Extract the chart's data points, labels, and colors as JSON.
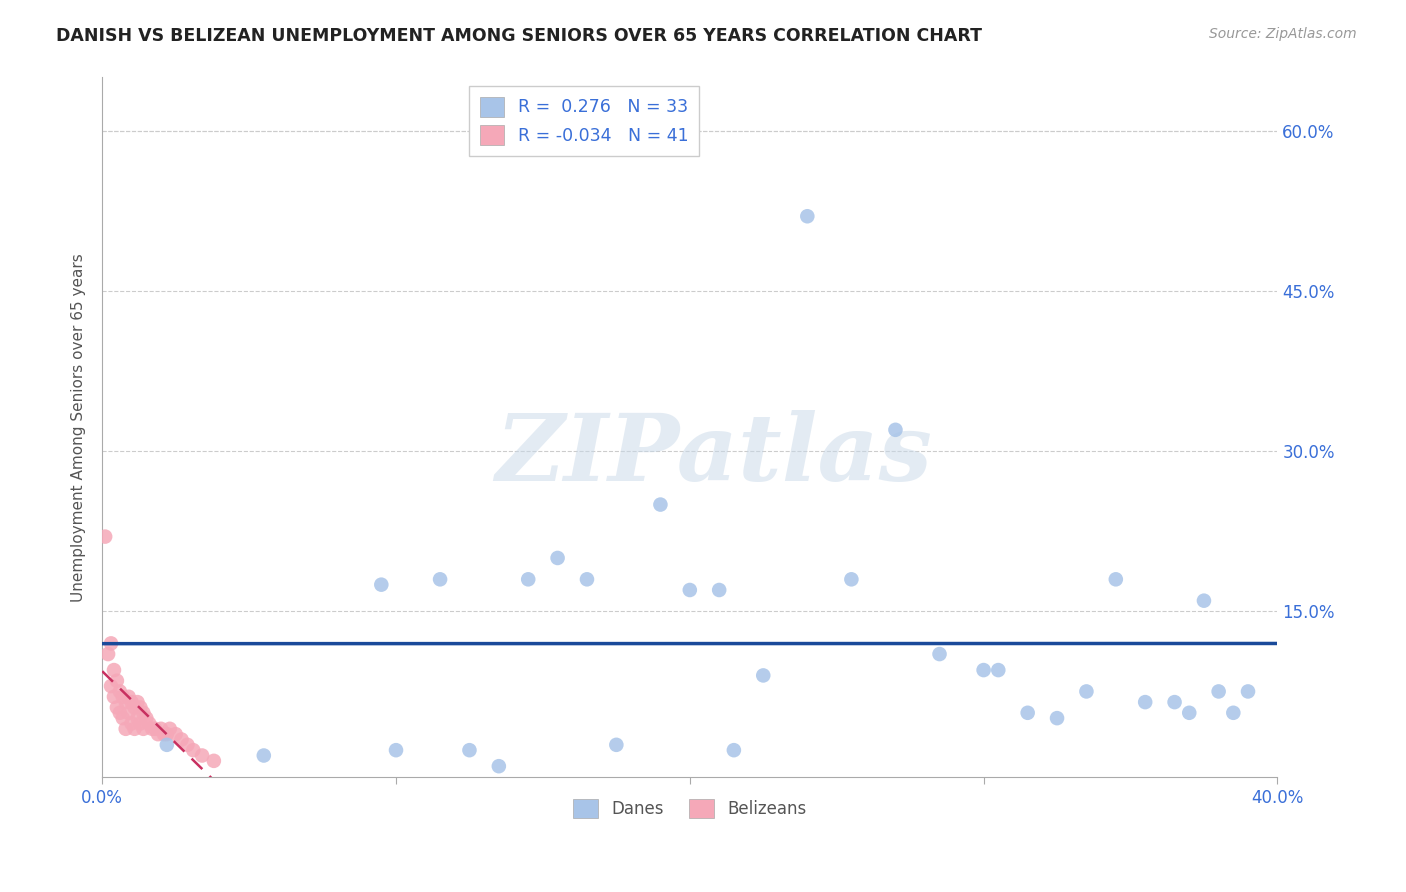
{
  "title": "DANISH VS BELIZEAN UNEMPLOYMENT AMONG SENIORS OVER 65 YEARS CORRELATION CHART",
  "source": "Source: ZipAtlas.com",
  "ylabel": "Unemployment Among Seniors over 65 years",
  "xlim": [
    0.0,
    0.4
  ],
  "ylim": [
    -0.005,
    0.65
  ],
  "xticks": [
    0.0,
    0.1,
    0.2,
    0.3,
    0.4
  ],
  "xtick_labels": [
    "0.0%",
    "",
    "",
    "",
    "40.0%"
  ],
  "yticks": [
    0.0,
    0.15,
    0.3,
    0.45,
    0.6
  ],
  "ytick_labels": [
    "",
    "15.0%",
    "30.0%",
    "45.0%",
    "60.0%"
  ],
  "dane_R": 0.276,
  "dane_N": 33,
  "belizean_R": -0.034,
  "belizean_N": 41,
  "dane_color": "#a8c4e8",
  "belizean_color": "#f5a8b8",
  "dane_line_color": "#1a4a9a",
  "belizean_line_color": "#c83060",
  "watermark_text": "ZIPatlas",
  "danes_x": [
    0.022,
    0.055,
    0.095,
    0.1,
    0.115,
    0.125,
    0.135,
    0.145,
    0.155,
    0.165,
    0.175,
    0.19,
    0.2,
    0.21,
    0.215,
    0.225,
    0.24,
    0.255,
    0.27,
    0.285,
    0.3,
    0.305,
    0.315,
    0.325,
    0.335,
    0.345,
    0.355,
    0.365,
    0.37,
    0.375,
    0.38,
    0.385,
    0.39
  ],
  "danes_y": [
    0.025,
    0.015,
    0.175,
    0.02,
    0.18,
    0.02,
    0.005,
    0.18,
    0.2,
    0.18,
    0.025,
    0.25,
    0.17,
    0.17,
    0.02,
    0.09,
    0.52,
    0.18,
    0.32,
    0.11,
    0.095,
    0.095,
    0.055,
    0.05,
    0.075,
    0.18,
    0.065,
    0.065,
    0.055,
    0.16,
    0.075,
    0.055,
    0.075
  ],
  "belizeans_x": [
    0.001,
    0.002,
    0.003,
    0.003,
    0.004,
    0.004,
    0.005,
    0.005,
    0.006,
    0.006,
    0.007,
    0.007,
    0.008,
    0.008,
    0.009,
    0.009,
    0.01,
    0.01,
    0.011,
    0.011,
    0.012,
    0.012,
    0.013,
    0.013,
    0.014,
    0.014,
    0.015,
    0.016,
    0.017,
    0.018,
    0.019,
    0.02,
    0.021,
    0.022,
    0.023,
    0.025,
    0.027,
    0.029,
    0.031,
    0.034,
    0.038
  ],
  "belizeans_y": [
    0.22,
    0.11,
    0.08,
    0.12,
    0.07,
    0.095,
    0.06,
    0.085,
    0.055,
    0.075,
    0.05,
    0.07,
    0.04,
    0.065,
    0.055,
    0.07,
    0.045,
    0.065,
    0.04,
    0.06,
    0.05,
    0.065,
    0.045,
    0.06,
    0.04,
    0.055,
    0.05,
    0.045,
    0.04,
    0.04,
    0.035,
    0.04,
    0.035,
    0.035,
    0.04,
    0.035,
    0.03,
    0.025,
    0.02,
    0.015,
    0.01
  ]
}
